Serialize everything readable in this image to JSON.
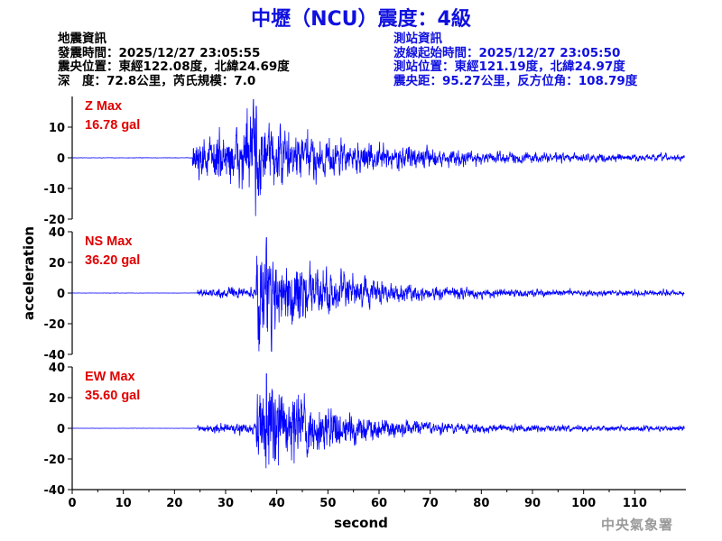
{
  "title": "中壢（NCU）震度：4級",
  "quake_info": {
    "heading": "地震資訊",
    "origin_time": "發震時間：2025/12/27 23:05:55",
    "epicenter": "震央位置：東經122.08度，北緯24.69度",
    "depth_mag": "深　度：72.8公里，芮氏規模：7.0"
  },
  "station_info": {
    "heading": "測站資訊",
    "wave_start": "波線起始時間：2025/12/27 23:05:50",
    "station_pos": "測站位置：東經121.19度，北緯24.97度",
    "distance": "震央距：95.27公里，反方位角：108.79度"
  },
  "agency": "中央氣象署",
  "chart_data": {
    "type": "line",
    "xlabel": "second",
    "ylabel": "acceleration",
    "xlim": [
      0,
      120
    ],
    "x_ticks": [
      0,
      10,
      20,
      30,
      40,
      50,
      60,
      70,
      80,
      90,
      100,
      110
    ],
    "line_color": "#0000ff",
    "label_color": "#e00000",
    "panels": [
      {
        "name": "Z Max",
        "max_label": "16.78 gal",
        "peak": 16.78,
        "ylim": [
          -20,
          20
        ],
        "y_ticks": [
          -20,
          -10,
          0,
          10
        ],
        "onset": 23.5,
        "peak_time": 36,
        "pre_level": 0.05
      },
      {
        "name": "NS Max",
        "max_label": "36.20 gal",
        "peak": 36.2,
        "ylim": [
          -40,
          40
        ],
        "y_ticks": [
          -40,
          -20,
          0,
          20,
          40
        ],
        "onset": 24.5,
        "peak_time": 38,
        "pre_level": 0.06
      },
      {
        "name": "EW Max",
        "max_label": "35.60 gal",
        "peak": 35.6,
        "ylim": [
          -40,
          40
        ],
        "y_ticks": [
          -40,
          -20,
          0,
          20,
          40
        ],
        "onset": 24.5,
        "peak_time": 38,
        "pre_level": 0.05
      }
    ]
  }
}
